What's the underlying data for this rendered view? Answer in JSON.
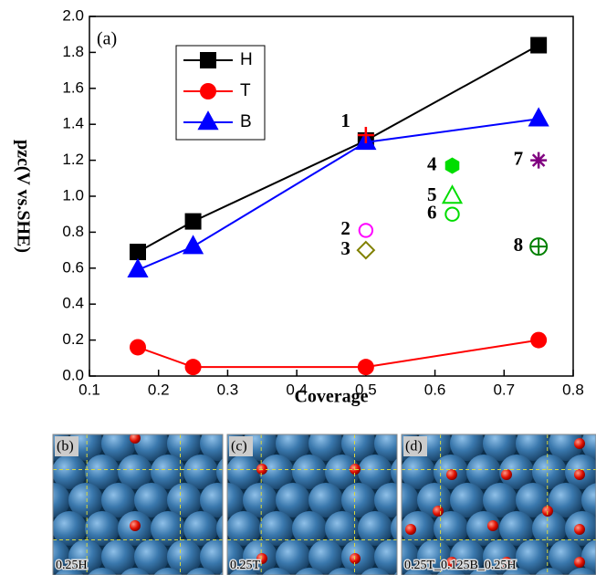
{
  "chart_data": {
    "type": "line",
    "panel_label": "(a)",
    "xlabel": "Coverage",
    "ylabel": "pzc(V vs.SHE)",
    "xlim": [
      0.1,
      0.8
    ],
    "xticks": [
      0.1,
      0.2,
      0.3,
      0.4,
      0.5,
      0.6,
      0.7,
      0.8
    ],
    "ylim": [
      0,
      2
    ],
    "yticks": [
      {
        "value": 0,
        "label": "0.0"
      },
      0.2,
      0.4,
      0.6,
      0.8,
      {
        "value": 1,
        "label": "1.0"
      },
      1.2,
      1.4,
      1.6,
      1.8,
      {
        "value": 2,
        "label": "2.0"
      }
    ],
    "legend": "upper left",
    "series": [
      {
        "name": "H",
        "color": "#000000",
        "marker": "square",
        "x": [
          0.17,
          0.25,
          0.5,
          0.75
        ],
        "values": [
          0.69,
          0.86,
          1.31,
          1.84
        ]
      },
      {
        "name": "T",
        "color": "#ff0000",
        "marker": "circle",
        "x": [
          0.17,
          0.25,
          0.5,
          0.75
        ],
        "values": [
          0.16,
          0.05,
          0.05,
          0.2
        ]
      },
      {
        "name": "B",
        "color": "#0000ff",
        "marker": "triangle",
        "x": [
          0.17,
          0.25,
          0.5,
          0.75
        ],
        "values": [
          0.59,
          0.72,
          1.3,
          1.43
        ]
      }
    ],
    "points": [
      {
        "label": "1",
        "x": 0.5,
        "y": 1.34,
        "color": "#ff0000",
        "marker": "plus"
      },
      {
        "label": "2",
        "x": 0.5,
        "y": 0.81,
        "color": "#ff00ff",
        "marker": "ring"
      },
      {
        "label": "3",
        "x": 0.5,
        "y": 0.7,
        "color": "#808000",
        "marker": "diamond"
      },
      {
        "label": "4",
        "x": 0.625,
        "y": 1.17,
        "color": "#00dd00",
        "marker": "hexagon"
      },
      {
        "label": "5",
        "x": 0.625,
        "y": 1.0,
        "color": "#00dd00",
        "marker": "open-triangle"
      },
      {
        "label": "6",
        "x": 0.625,
        "y": 0.9,
        "color": "#00dd00",
        "marker": "ring"
      },
      {
        "label": "7",
        "x": 0.75,
        "y": 1.2,
        "color": "#800080",
        "marker": "asterisk"
      },
      {
        "label": "8",
        "x": 0.75,
        "y": 0.72,
        "color": "#008000",
        "marker": "circle-plus"
      }
    ]
  },
  "panels": [
    {
      "label": "(b)",
      "caption": "0.25H"
    },
    {
      "label": "(c)",
      "caption": "0.25T"
    },
    {
      "label": "(d)",
      "caption": "0.25T_0.125B_0.25H"
    }
  ]
}
